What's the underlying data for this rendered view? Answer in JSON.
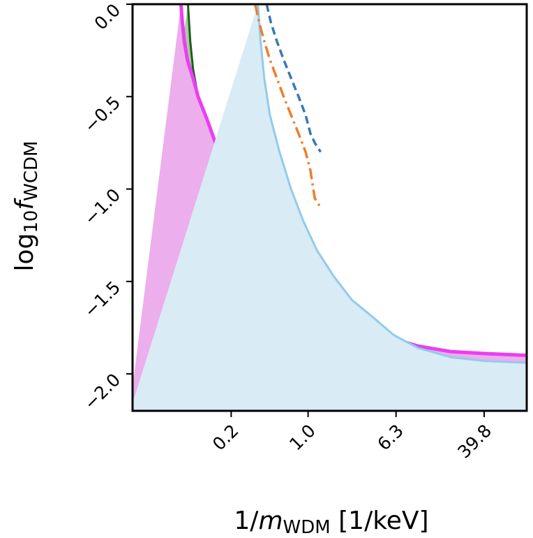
{
  "chart_data": {
    "type": "area",
    "title": "",
    "xlabel": {
      "base": "1/",
      "italic": "m",
      "sub": "WDM",
      "rest": " [1/keV]"
    },
    "ylabel": {
      "base": "log",
      "sub1": "10",
      "italic": "f",
      "sub2": "WCDM"
    },
    "x_scale": "log10",
    "xlim": [
      0.0254,
      97
    ],
    "ylim": [
      -2.2,
      0.0
    ],
    "xticks": [
      {
        "value": 0.2,
        "label": "0.2"
      },
      {
        "value": 1.0,
        "label": "1.0"
      },
      {
        "value": 6.3,
        "label": "6.3"
      },
      {
        "value": 39.8,
        "label": "39.8"
      }
    ],
    "yticks": [
      {
        "value": 0.0,
        "label": "0.0"
      },
      {
        "value": -0.5,
        "label": "−0.5"
      },
      {
        "value": -1.0,
        "label": "−1.0"
      },
      {
        "value": -1.5,
        "label": "−1.5"
      },
      {
        "value": -2.0,
        "label": "−2.0"
      }
    ],
    "grid": false,
    "legend": "none",
    "series": [
      {
        "style": "filled-region",
        "fill": "#aec9a6",
        "stroke": "#1c5e1c",
        "x": [
          0.081,
          0.085,
          0.09,
          0.1,
          0.12,
          0.15,
          0.2,
          0.28,
          0.4,
          0.55,
          0.8,
          1.2,
          2.0,
          3.5,
          6.0,
          10.0,
          20.0,
          40.0,
          97.0
        ],
        "y": [
          0.0,
          -0.2,
          -0.35,
          -0.5,
          -0.65,
          -0.8,
          -1.0,
          -1.2,
          -1.4,
          -1.55,
          -1.69,
          -1.77,
          -1.83,
          -1.88,
          -1.91,
          -1.93,
          -1.95,
          -1.96,
          -1.96
        ]
      },
      {
        "style": "band",
        "fill": "#ecaeec",
        "stroke": "#ea3ff0",
        "x": [
          0.07,
          0.072,
          0.075,
          0.08,
          0.09,
          0.1,
          0.12,
          0.15,
          0.2,
          0.28,
          0.4,
          0.55,
          0.8,
          1.2,
          2.0,
          3.5,
          6.0,
          10.0,
          20.0,
          40.0,
          97.0
        ],
        "y": [
          0.0,
          -0.1,
          -0.2,
          -0.3,
          -0.4,
          -0.5,
          -0.62,
          -0.78,
          -0.97,
          -1.15,
          -1.33,
          -1.48,
          -1.6,
          -1.66,
          -1.71,
          -1.76,
          -1.81,
          -1.85,
          -1.88,
          -1.89,
          -1.9
        ]
      },
      {
        "style": "band",
        "fill": "#d9ebf5",
        "stroke": "#91cbec",
        "x": [
          0.35,
          0.37,
          0.4,
          0.45,
          0.55,
          0.7,
          0.9,
          1.2,
          1.7,
          2.5,
          4.0,
          6.0,
          10.0,
          20.0,
          40.0,
          97.0
        ],
        "y": [
          0.0,
          -0.2,
          -0.4,
          -0.6,
          -0.8,
          -1.0,
          -1.17,
          -1.33,
          -1.47,
          -1.6,
          -1.7,
          -1.79,
          -1.86,
          -1.91,
          -1.93,
          -1.94
        ]
      },
      {
        "style": "dashed",
        "stroke": "#3a78b4",
        "x": [
          0.42,
          0.46,
          0.52,
          0.6,
          0.7,
          0.82,
          0.95,
          1.05,
          1.15,
          1.3
        ],
        "y": [
          0.0,
          -0.1,
          -0.2,
          -0.3,
          -0.4,
          -0.5,
          -0.6,
          -0.7,
          -0.75,
          -0.8
        ]
      },
      {
        "style": "dashdot",
        "stroke": "#f07d28",
        "x": [
          0.33,
          0.36,
          0.4,
          0.45,
          0.52,
          0.6,
          0.7,
          0.82,
          0.95,
          1.05,
          1.15,
          1.3
        ],
        "y": [
          0.0,
          -0.1,
          -0.2,
          -0.3,
          -0.4,
          -0.5,
          -0.6,
          -0.7,
          -0.8,
          -0.9,
          -1.05,
          -1.1
        ]
      }
    ]
  }
}
